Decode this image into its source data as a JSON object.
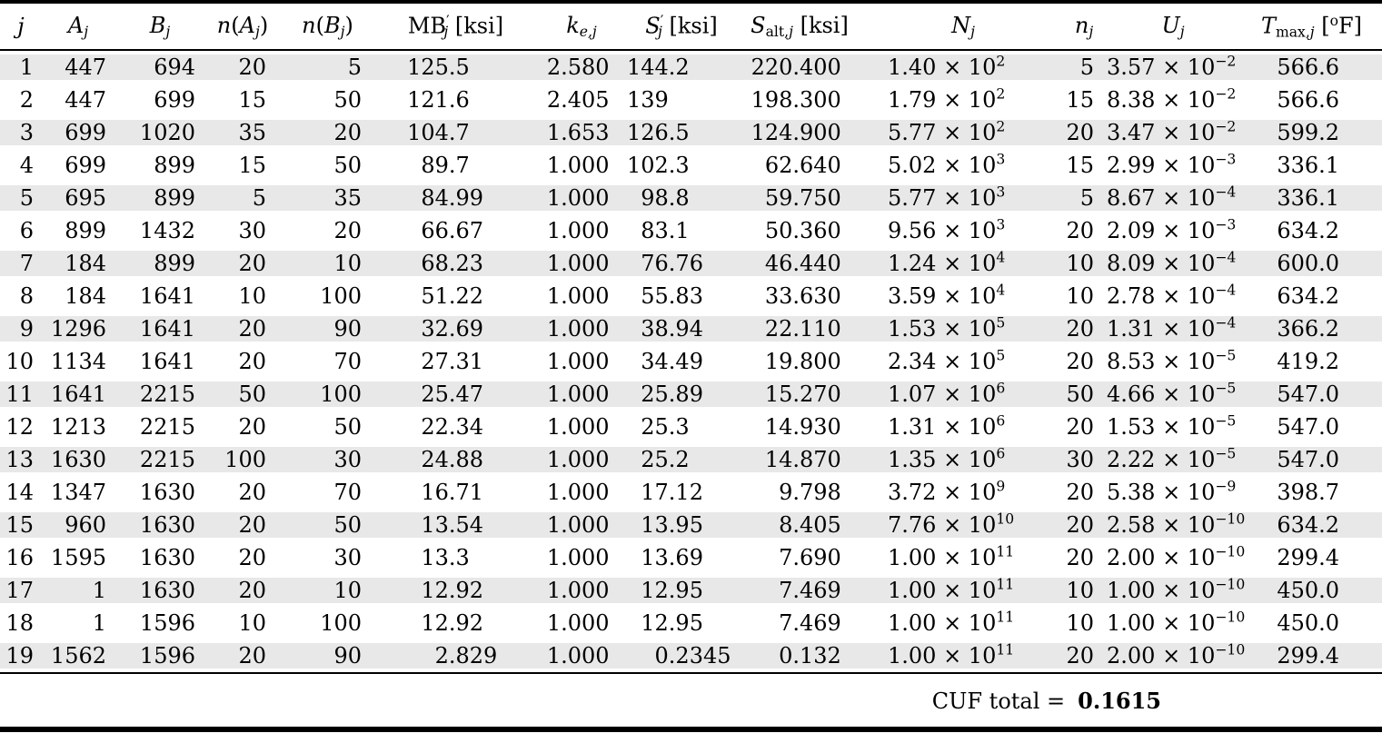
{
  "colors": {
    "stripe": "#e8e8e8",
    "rule": "#000000",
    "text": "#000000",
    "background": "#ffffff"
  },
  "table": {
    "columns": [
      {
        "id": "j",
        "header": [
          {
            "t": "j",
            "s": "i"
          }
        ]
      },
      {
        "id": "Aj",
        "header": [
          {
            "t": "A",
            "s": "i"
          },
          {
            "t": "j",
            "s": "sub"
          }
        ]
      },
      {
        "id": "Bj",
        "header": [
          {
            "t": "B",
            "s": "i"
          },
          {
            "t": "j",
            "s": "sub"
          }
        ]
      },
      {
        "id": "nAj",
        "header": [
          {
            "t": "n",
            "s": "i"
          },
          {
            "t": "(",
            "s": "r"
          },
          {
            "t": "A",
            "s": "i"
          },
          {
            "t": "j",
            "s": "sub"
          },
          {
            "t": ")",
            "s": "r"
          }
        ]
      },
      {
        "id": "nBj",
        "header": [
          {
            "t": "n",
            "s": "i"
          },
          {
            "t": "(",
            "s": "r"
          },
          {
            "t": "B",
            "s": "i"
          },
          {
            "t": "j",
            "s": "sub"
          },
          {
            "t": ")",
            "s": "r"
          }
        ]
      },
      {
        "id": "MBj",
        "header": [
          {
            "t": "MB",
            "s": "r"
          },
          {
            "t": "′",
            "s": "sup"
          },
          {
            "t": "j",
            "s": "sub"
          },
          {
            "t": " [ksi]",
            "s": "r"
          }
        ]
      },
      {
        "id": "kej",
        "header": [
          {
            "t": "k",
            "s": "i"
          },
          {
            "t": "e,j",
            "s": "sub"
          }
        ]
      },
      {
        "id": "Sj",
        "header": [
          {
            "t": "S",
            "s": "i"
          },
          {
            "t": "′",
            "s": "sup"
          },
          {
            "t": "j",
            "s": "sub"
          },
          {
            "t": " [ksi]",
            "s": "r"
          }
        ]
      },
      {
        "id": "Saltj",
        "header": [
          {
            "t": "S",
            "s": "i"
          },
          {
            "t": "alt,",
            "s": "subr"
          },
          {
            "t": "j",
            "s": "sub"
          },
          {
            "t": " [ksi]",
            "s": "r"
          }
        ]
      },
      {
        "id": "Nj",
        "header": [
          {
            "t": "N",
            "s": "i"
          },
          {
            "t": "j",
            "s": "sub"
          }
        ]
      },
      {
        "id": "nj",
        "header": [
          {
            "t": "n",
            "s": "i"
          },
          {
            "t": "j",
            "s": "sub"
          }
        ]
      },
      {
        "id": "Uj",
        "header": [
          {
            "t": "U",
            "s": "i"
          },
          {
            "t": "j",
            "s": "sub"
          }
        ]
      },
      {
        "id": "Tmaxj",
        "header": [
          {
            "t": "T",
            "s": "i"
          },
          {
            "t": "max,",
            "s": "subr"
          },
          {
            "t": "j",
            "s": "sub"
          },
          {
            "t": " [",
            "s": "r"
          },
          {
            "t": "o",
            "s": "sup"
          },
          {
            "t": "F]",
            "s": "r"
          }
        ]
      }
    ],
    "rows": [
      [
        "1",
        "447",
        "694",
        "20",
        "5",
        "125.5",
        "2.580",
        "144.2",
        "220.400",
        {
          "m": "1.40",
          "e": "2"
        },
        "5",
        {
          "m": "3.57",
          "e": "−2"
        },
        "566.6"
      ],
      [
        "2",
        "447",
        "699",
        "15",
        "50",
        "121.6",
        "2.405",
        "139",
        "198.300",
        {
          "m": "1.79",
          "e": "2"
        },
        "15",
        {
          "m": "8.38",
          "e": "−2"
        },
        "566.6"
      ],
      [
        "3",
        "699",
        "1020",
        "35",
        "20",
        "104.7",
        "1.653",
        "126.5",
        "124.900",
        {
          "m": "5.77",
          "e": "2"
        },
        "20",
        {
          "m": "3.47",
          "e": "−2"
        },
        "599.2"
      ],
      [
        "4",
        "699",
        "899",
        "15",
        "50",
        "89.7",
        "1.000",
        "102.3",
        "62.640",
        {
          "m": "5.02",
          "e": "3"
        },
        "15",
        {
          "m": "2.99",
          "e": "−3"
        },
        "336.1"
      ],
      [
        "5",
        "695",
        "899",
        "5",
        "35",
        "84.99",
        "1.000",
        "98.8",
        "59.750",
        {
          "m": "5.77",
          "e": "3"
        },
        "5",
        {
          "m": "8.67",
          "e": "−4"
        },
        "336.1"
      ],
      [
        "6",
        "899",
        "1432",
        "30",
        "20",
        "66.67",
        "1.000",
        "83.1",
        "50.360",
        {
          "m": "9.56",
          "e": "3"
        },
        "20",
        {
          "m": "2.09",
          "e": "−3"
        },
        "634.2"
      ],
      [
        "7",
        "184",
        "899",
        "20",
        "10",
        "68.23",
        "1.000",
        "76.76",
        "46.440",
        {
          "m": "1.24",
          "e": "4"
        },
        "10",
        {
          "m": "8.09",
          "e": "−4"
        },
        "600.0"
      ],
      [
        "8",
        "184",
        "1641",
        "10",
        "100",
        "51.22",
        "1.000",
        "55.83",
        "33.630",
        {
          "m": "3.59",
          "e": "4"
        },
        "10",
        {
          "m": "2.78",
          "e": "−4"
        },
        "634.2"
      ],
      [
        "9",
        "1296",
        "1641",
        "20",
        "90",
        "32.69",
        "1.000",
        "38.94",
        "22.110",
        {
          "m": "1.53",
          "e": "5"
        },
        "20",
        {
          "m": "1.31",
          "e": "−4"
        },
        "366.2"
      ],
      [
        "10",
        "1134",
        "1641",
        "20",
        "70",
        "27.31",
        "1.000",
        "34.49",
        "19.800",
        {
          "m": "2.34",
          "e": "5"
        },
        "20",
        {
          "m": "8.53",
          "e": "−5"
        },
        "419.2"
      ],
      [
        "11",
        "1641",
        "2215",
        "50",
        "100",
        "25.47",
        "1.000",
        "25.89",
        "15.270",
        {
          "m": "1.07",
          "e": "6"
        },
        "50",
        {
          "m": "4.66",
          "e": "−5"
        },
        "547.0"
      ],
      [
        "12",
        "1213",
        "2215",
        "20",
        "50",
        "22.34",
        "1.000",
        "25.3",
        "14.930",
        {
          "m": "1.31",
          "e": "6"
        },
        "20",
        {
          "m": "1.53",
          "e": "−5"
        },
        "547.0"
      ],
      [
        "13",
        "1630",
        "2215",
        "100",
        "30",
        "24.88",
        "1.000",
        "25.2",
        "14.870",
        {
          "m": "1.35",
          "e": "6"
        },
        "30",
        {
          "m": "2.22",
          "e": "−5"
        },
        "547.0"
      ],
      [
        "14",
        "1347",
        "1630",
        "20",
        "70",
        "16.71",
        "1.000",
        "17.12",
        "9.798",
        {
          "m": "3.72",
          "e": "9"
        },
        "20",
        {
          "m": "5.38",
          "e": "−9"
        },
        "398.7"
      ],
      [
        "15",
        "960",
        "1630",
        "20",
        "50",
        "13.54",
        "1.000",
        "13.95",
        "8.405",
        {
          "m": "7.76",
          "e": "10"
        },
        "20",
        {
          "m": "2.58",
          "e": "−10"
        },
        "634.2"
      ],
      [
        "16",
        "1595",
        "1630",
        "20",
        "30",
        "13.3",
        "1.000",
        "13.69",
        "7.690",
        {
          "m": "1.00",
          "e": "11"
        },
        "20",
        {
          "m": "2.00",
          "e": "−10"
        },
        "299.4"
      ],
      [
        "17",
        "1",
        "1630",
        "20",
        "10",
        "12.92",
        "1.000",
        "12.95",
        "7.469",
        {
          "m": "1.00",
          "e": "11"
        },
        "10",
        {
          "m": "1.00",
          "e": "−10"
        },
        "450.0"
      ],
      [
        "18",
        "1",
        "1596",
        "10",
        "100",
        "12.92",
        "1.000",
        "12.95",
        "7.469",
        {
          "m": "1.00",
          "e": "11"
        },
        "10",
        {
          "m": "1.00",
          "e": "−10"
        },
        "450.0"
      ],
      [
        "19",
        "1562",
        "1596",
        "20",
        "90",
        "2.829",
        "1.000",
        "0.2345",
        "0.132",
        {
          "m": "1.00",
          "e": "11"
        },
        "20",
        {
          "m": "2.00",
          "e": "−10"
        },
        "299.4"
      ]
    ],
    "times_notation": " × 10",
    "footer": {
      "label": "CUF total =",
      "value": "0.1615"
    }
  }
}
